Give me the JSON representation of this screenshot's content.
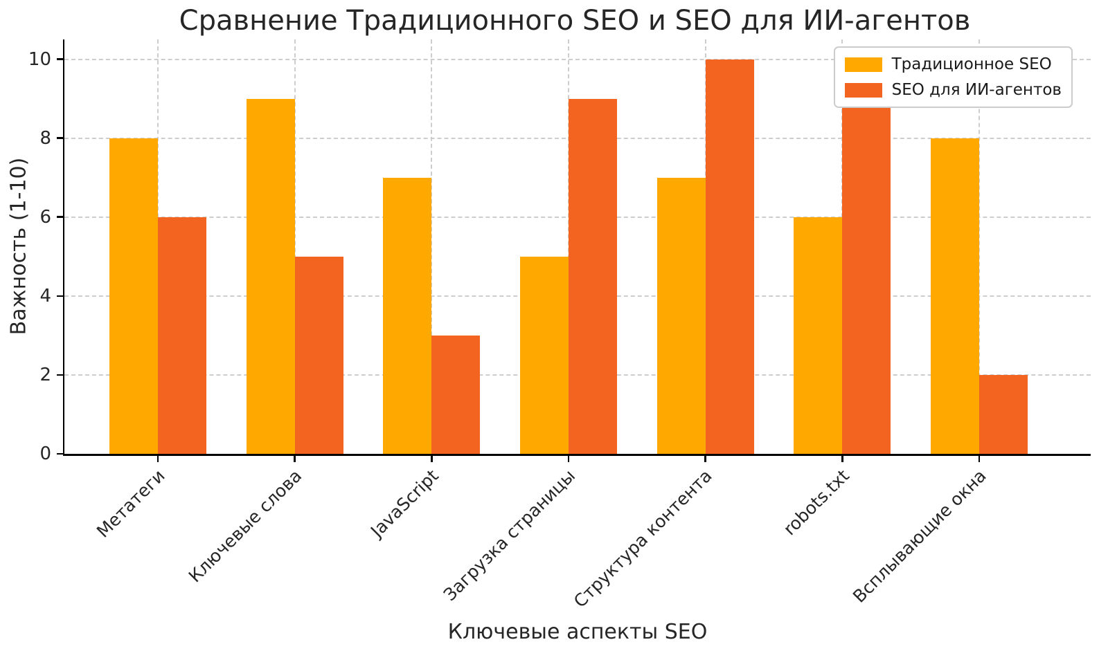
{
  "chart_data": {
    "type": "bar",
    "title": "Сравнение Традиционного SEO и SEO для ИИ-агентов",
    "xlabel": "Ключевые аспекты SEO",
    "ylabel": "Важность (1-10)",
    "categories": [
      "Метатеги",
      "Ключевые слова",
      "JavaScript",
      "Загрузка страницы",
      "Структура контента",
      "robots.txt",
      "Всплывающие окна"
    ],
    "series": [
      {
        "name": "Традиционное SEO",
        "color": "#FFA800",
        "values": [
          8,
          9,
          7,
          5,
          7,
          6,
          8
        ]
      },
      {
        "name": "SEO для ИИ-агентов",
        "color": "#F2641F",
        "values": [
          6,
          5,
          3,
          9,
          10,
          9,
          2
        ]
      }
    ],
    "yticks": [
      0,
      2,
      4,
      6,
      8,
      10
    ],
    "ylim": [
      0,
      10.5
    ],
    "grid": true,
    "grid_style": "dashed",
    "grid_color": "#cdcdcd",
    "legend_position": "upper-right",
    "background": "#ffffff"
  }
}
